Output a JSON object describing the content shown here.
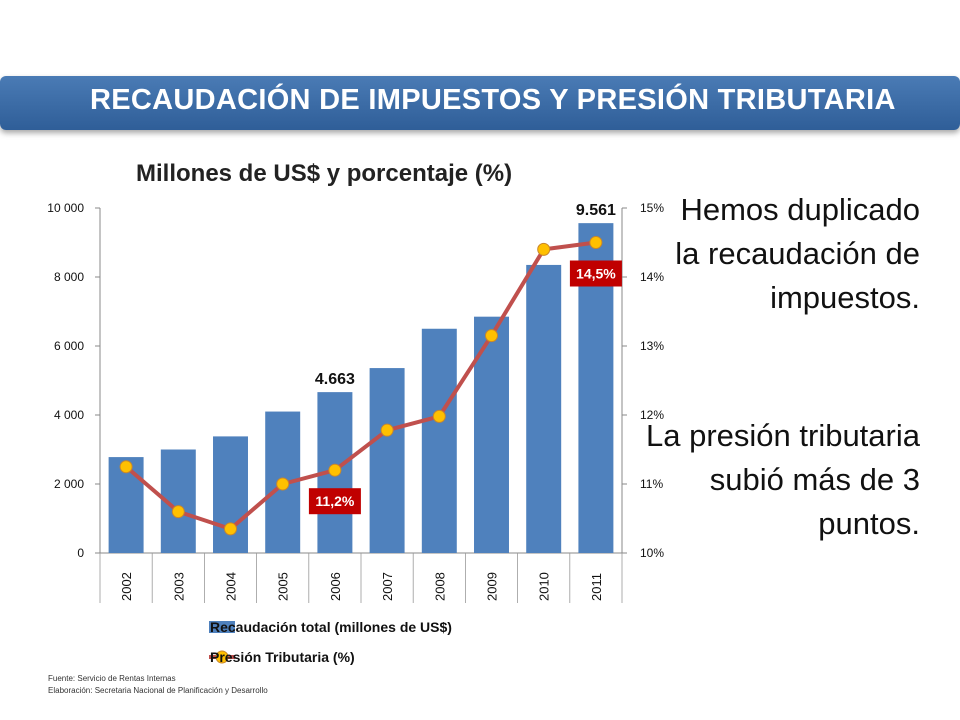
{
  "header": {
    "title": "RECAUDACIÓN DE IMPUESTOS Y PRESIÓN TRIBUTARIA"
  },
  "message": {
    "line1": "Hemos duplicado la recaudación de impuestos.",
    "line2": "La presión tributaria subió más de 3 puntos."
  },
  "footer": {
    "source": "Fuente: Servicio de Rentas Internas",
    "elaboration": "Elaboración: Secretaria Nacional de Planificación y Desarrollo"
  },
  "colors": {
    "bar": "#4f81bd",
    "line": "#c0504d",
    "marker": "#ffc000",
    "banner": "#3a6aa8",
    "label_bg": "#c00000"
  },
  "chart_data": {
    "type": "bar",
    "title": "Millones de US$ y porcentaje (%)",
    "categories": [
      "2002",
      "2003",
      "2004",
      "2005",
      "2006",
      "2007",
      "2008",
      "2009",
      "2010",
      "2011"
    ],
    "series": [
      {
        "name": "Recaudación total (millones de US$)",
        "type": "bar",
        "axis": "left",
        "values": [
          2780,
          3000,
          3380,
          4100,
          4663,
          5360,
          6500,
          6850,
          8350,
          9561
        ]
      },
      {
        "name": "Presión Tributaria (%)",
        "type": "line",
        "axis": "right",
        "values": [
          11.25,
          10.6,
          10.35,
          11.0,
          11.2,
          11.78,
          11.98,
          13.15,
          14.4,
          14.5
        ]
      }
    ],
    "ylim_left": [
      0,
      10000
    ],
    "yticks_left": [
      "0",
      "2 000",
      "4 000",
      "6 000",
      "8 000",
      "10 000"
    ],
    "ylim_right": [
      10,
      15
    ],
    "yticks_right": [
      "10%",
      "11%",
      "12%",
      "13%",
      "14%",
      "15%"
    ],
    "annotations": [
      {
        "category": "2006",
        "text": "4.663",
        "series": "bar"
      },
      {
        "category": "2011",
        "text": "9.561",
        "series": "bar"
      },
      {
        "category": "2006",
        "text": "11,2%",
        "series": "line"
      },
      {
        "category": "2011",
        "text": "14,5%",
        "series": "line"
      }
    ],
    "legend": "bottom",
    "grid": false
  }
}
